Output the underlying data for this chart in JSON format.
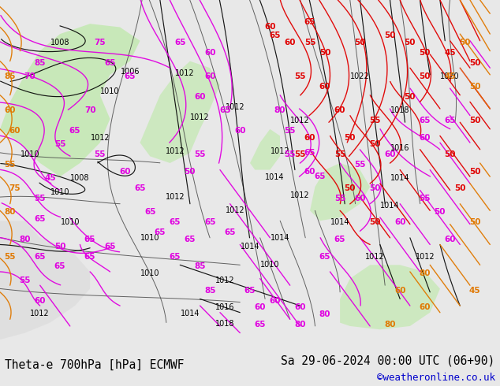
{
  "title_left": "Theta-e 700hPa [hPa] ECMWF",
  "title_right": "Sa 29-06-2024 00:00 UTC (06+90)",
  "copyright": "©weatheronline.co.uk",
  "bg_color": "#e8e8e8",
  "map_bg": "#ffffff",
  "fig_width": 6.34,
  "fig_height": 4.9,
  "dpi": 100,
  "title_fontsize": 10.5,
  "copyright_fontsize": 9,
  "copyright_color": "#0000cc"
}
